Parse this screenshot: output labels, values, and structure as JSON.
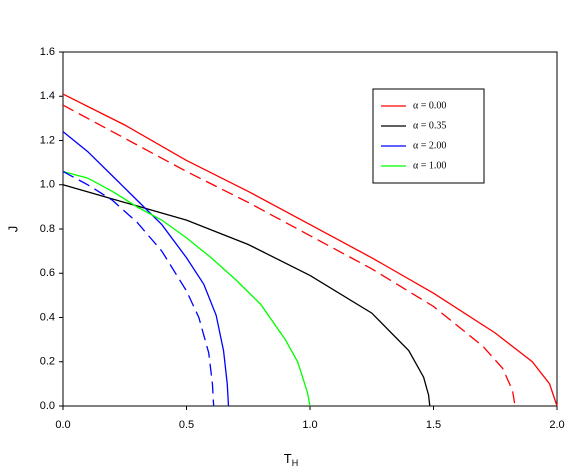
{
  "chart_data": {
    "type": "line",
    "xlabel": {
      "text": "T",
      "subscript": "H"
    },
    "ylabel": "J",
    "xlim": [
      0,
      2.0
    ],
    "ylim": [
      0,
      1.6
    ],
    "xticks": [
      {
        "value": 0,
        "label": "0.0"
      },
      {
        "value": 0.5,
        "label": "0.5"
      },
      {
        "value": 1.0,
        "label": "1.0"
      },
      {
        "value": 1.5,
        "label": "1.5"
      },
      {
        "value": 2.0,
        "label": "2.0"
      }
    ],
    "yticks": [
      {
        "value": 0,
        "label": "0.0"
      },
      {
        "value": 0.2,
        "label": "0.2"
      },
      {
        "value": 0.4,
        "label": "0.4"
      },
      {
        "value": 0.6,
        "label": "0.6"
      },
      {
        "value": 0.8,
        "label": "0.8"
      },
      {
        "value": 1.0,
        "label": "1.0"
      },
      {
        "value": 1.2,
        "label": "1.2"
      },
      {
        "value": 1.4,
        "label": "1.4"
      },
      {
        "value": 1.6,
        "label": "1.6"
      }
    ],
    "legend": "upper right",
    "series": [
      {
        "name": "α = 0.00",
        "color": "#ff0000",
        "dashed": false,
        "x": [
          0,
          0.25,
          0.5,
          0.75,
          1.0,
          1.25,
          1.5,
          1.75,
          1.9,
          1.97,
          2.0
        ],
        "values": [
          1.41,
          1.27,
          1.11,
          0.97,
          0.82,
          0.67,
          0.51,
          0.33,
          0.2,
          0.1,
          0
        ]
      },
      {
        "name": "α = 0.35",
        "color": "#000000",
        "dashed": false,
        "x": [
          0,
          0.25,
          0.5,
          0.75,
          1.0,
          1.25,
          1.4,
          1.46,
          1.48,
          1.485
        ],
        "values": [
          1.0,
          0.92,
          0.84,
          0.73,
          0.59,
          0.42,
          0.25,
          0.13,
          0.05,
          0
        ]
      },
      {
        "name": "α = 2.00",
        "color": "#0000ff",
        "dashed": false,
        "x": [
          0,
          0.1,
          0.2,
          0.3,
          0.4,
          0.5,
          0.57,
          0.62,
          0.65,
          0.665,
          0.67
        ],
        "values": [
          1.24,
          1.15,
          1.04,
          0.93,
          0.82,
          0.67,
          0.55,
          0.41,
          0.25,
          0.1,
          0
        ]
      },
      {
        "name": "α = 1.00",
        "color": "#00ff00",
        "dashed": false,
        "x": [
          0,
          0.1,
          0.2,
          0.3,
          0.4,
          0.5,
          0.6,
          0.7,
          0.8,
          0.9,
          0.95,
          0.99,
          1.0
        ],
        "values": [
          1.06,
          1.03,
          0.97,
          0.9,
          0.84,
          0.76,
          0.67,
          0.57,
          0.46,
          0.3,
          0.2,
          0.06,
          0
        ]
      },
      {
        "color": "#ff0000",
        "dashed": true,
        "x": [
          0,
          0.25,
          0.5,
          0.75,
          1.0,
          1.25,
          1.5,
          1.7,
          1.78,
          1.82,
          1.83
        ],
        "values": [
          1.36,
          1.21,
          1.06,
          0.92,
          0.77,
          0.62,
          0.45,
          0.27,
          0.17,
          0.07,
          0
        ]
      },
      {
        "color": "#0000ff",
        "dashed": true,
        "x": [
          0,
          0.1,
          0.2,
          0.3,
          0.4,
          0.5,
          0.55,
          0.59,
          0.605,
          0.61
        ],
        "values": [
          1.06,
          1.0,
          0.93,
          0.83,
          0.7,
          0.52,
          0.4,
          0.24,
          0.1,
          0
        ]
      }
    ]
  }
}
